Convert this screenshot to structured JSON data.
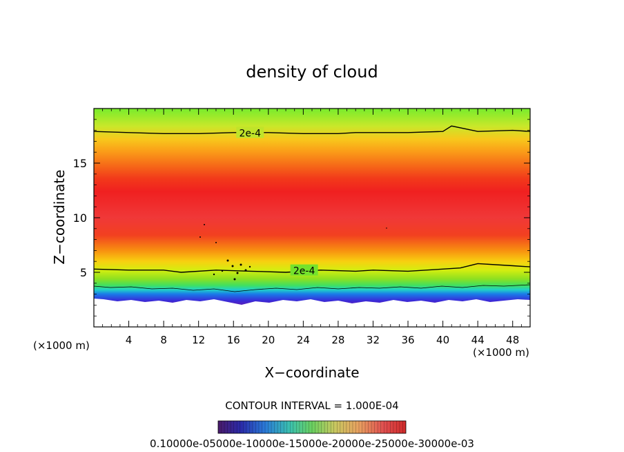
{
  "chart_data": {
    "type": "heatmap",
    "title": "density of cloud",
    "xlabel": "X−coordinate",
    "ylabel": "Z−coordinate",
    "x_unit_left": "(×1000 m)",
    "x_unit_right": "(×1000 m)",
    "xlim": [
      0,
      50
    ],
    "ylim": [
      0,
      20
    ],
    "x_ticks": [
      4,
      8,
      12,
      16,
      20,
      24,
      28,
      32,
      36,
      40,
      44,
      48
    ],
    "x_tick_labels": [
      "4",
      "8",
      "12",
      "16",
      "20",
      "24",
      "28",
      "32",
      "36",
      "40",
      "44",
      "48"
    ],
    "y_ticks": [
      5,
      10,
      15
    ],
    "y_tick_labels": [
      "5",
      "10",
      "15"
    ],
    "contour_label": "2e-4",
    "contour_interval_text": "CONTOUR INTERVAL = 1.000E-04",
    "colorbar_labels_text": "0.10000e-05000e-10000e-15000e-20000e-25000e-30000e-03",
    "vertical_profile": {
      "z": [
        2.0,
        2.5,
        3.0,
        3.5,
        4.0,
        4.5,
        5.0,
        6.0,
        7.0,
        8.0,
        9.0,
        10.0,
        11.0,
        12.0,
        13.0,
        14.0,
        15.0,
        16.0,
        17.0,
        18.0,
        19.0,
        20.0
      ],
      "density": [
        1e-05,
        3e-05,
        7e-05,
        0.00011,
        0.00015,
        0.00018,
        0.0002,
        0.00024,
        0.00027,
        0.00028,
        0.00029,
        0.00029,
        0.0003,
        0.0003,
        0.0003,
        0.00029,
        0.00027,
        0.00025,
        0.00022,
        0.0002,
        0.00017,
        0.00015
      ]
    },
    "contours": [
      {
        "level": 0.0002,
        "label": "2e-4",
        "z": [
          17.9,
          17.8,
          17.7,
          17.7,
          17.8,
          17.8,
          17.7,
          17.7,
          17.8,
          17.8,
          17.8,
          17.9,
          18.4,
          17.9,
          18.0,
          17.9
        ],
        "x": [
          0,
          4,
          8,
          12,
          16,
          20,
          24,
          28,
          30,
          32,
          36,
          40,
          41,
          44,
          48,
          50
        ]
      },
      {
        "level": 0.0002,
        "label": "2e-4",
        "z": [
          5.3,
          5.2,
          5.2,
          5.0,
          5.2,
          5.1,
          5.0,
          5.2,
          5.1,
          5.2,
          5.1,
          5.3,
          5.4,
          5.8,
          5.6,
          5.5
        ],
        "x": [
          0,
          4,
          8,
          10,
          14,
          18,
          22,
          26,
          30,
          32,
          36,
          40,
          42,
          44,
          48,
          50
        ]
      }
    ]
  }
}
